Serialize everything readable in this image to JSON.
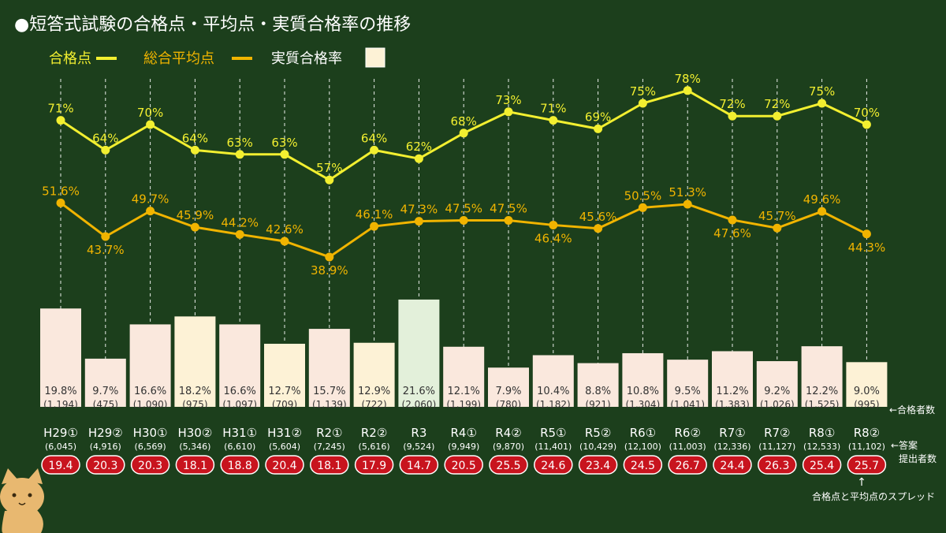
{
  "title": "●短答式試験の合格点・平均点・実質合格率の推移",
  "legend": {
    "pass_score": "合格点",
    "avg_score": "総合平均点",
    "rate": "実質合格率"
  },
  "colors": {
    "background": "#1c3f1c",
    "pass_line": "#f2ef30",
    "avg_line": "#f0b400",
    "bar_pink": "#fae8dd",
    "bar_cream": "#fdf2d6",
    "bar_green": "#e3f0da",
    "spread_fill": "#c8141e",
    "legend_text_pass": "#f2ef30",
    "legend_text_avg": "#f0b400"
  },
  "annotations": {
    "passers": "←合格者数",
    "submitters_1": "←答案",
    "submitters_2": "提出者数",
    "spread_arrow": "↑",
    "spread": "合格点と平均点のスプレッド"
  },
  "chart_data": {
    "type": "bar",
    "categories": [
      "H29①",
      "H29②",
      "H30①",
      "H30②",
      "H31①",
      "H31②",
      "R2①",
      "R2②",
      "R3",
      "R4①",
      "R4②",
      "R5①",
      "R5②",
      "R6①",
      "R6②",
      "R7①",
      "R7②",
      "R8①",
      "R8②"
    ],
    "series": [
      {
        "name": "合格点",
        "type": "line",
        "unit": "%",
        "values": [
          71,
          64,
          70,
          64,
          63,
          63,
          57,
          64,
          62,
          68,
          73,
          71,
          69,
          75,
          78,
          72,
          72,
          75,
          70
        ]
      },
      {
        "name": "総合平均点",
        "type": "line",
        "unit": "%",
        "values": [
          51.6,
          43.7,
          49.7,
          45.9,
          44.2,
          42.6,
          38.9,
          46.1,
          47.3,
          47.5,
          47.5,
          46.4,
          45.6,
          50.5,
          51.3,
          47.6,
          45.7,
          49.6,
          44.3
        ]
      },
      {
        "name": "実質合格率",
        "type": "bar",
        "unit": "%",
        "values": [
          19.8,
          9.7,
          16.6,
          18.2,
          16.6,
          12.7,
          15.7,
          12.9,
          21.6,
          12.1,
          7.9,
          10.4,
          8.8,
          10.8,
          9.5,
          11.2,
          9.2,
          12.2,
          9.0
        ]
      }
    ],
    "pass_label_text": [
      "71%",
      "64%",
      "70%",
      "64%",
      "63%",
      "63%",
      "57%",
      "64%",
      "62%",
      "68%",
      "73%",
      "71%",
      "69%",
      "75%",
      "78%",
      "72%",
      "72%",
      "75%",
      "70%"
    ],
    "avg_label_text": [
      "51.6%",
      "43.7%",
      "49.7%",
      "45.9%",
      "44.2%",
      "42.6%",
      "38.9%",
      "46.1%",
      "47.3%",
      "47.5%",
      "47.5%",
      "46.4%",
      "45.6%",
      "50.5%",
      "51.3%",
      "47.6%",
      "45.7%",
      "49.6%",
      "44.3%"
    ],
    "rate_label_text": [
      "19.8%",
      "9.7%",
      "16.6%",
      "18.2%",
      "16.6%",
      "12.7%",
      "15.7%",
      "12.9%",
      "21.6%",
      "12.1%",
      "7.9%",
      "10.4%",
      "8.8%",
      "10.8%",
      "9.5%",
      "11.2%",
      "9.2%",
      "12.2%",
      "9.0%"
    ],
    "passers": [
      "(1,194)",
      "(475)",
      "(1,090)",
      "(975)",
      "(1,097)",
      "(709)",
      "(1,139)",
      "(722)",
      "(2,060)",
      "(1,199)",
      "(780)",
      "(1,182)",
      "(921)",
      "(1,304)",
      "(1,041)",
      "(1,383)",
      "(1,026)",
      "(1,525)",
      "(995)"
    ],
    "submitters": [
      "(6,045)",
      "(4,916)",
      "(6,569)",
      "(5,346)",
      "(6,610)",
      "(5,604)",
      "(7,245)",
      "(5,616)",
      "(9,524)",
      "(9,949)",
      "(9,870)",
      "(11,401)",
      "(10,429)",
      "(12,100)",
      "(11,003)",
      "(12,336)",
      "(11,127)",
      "(12,533)",
      "(11,102)"
    ],
    "spread": [
      "19.4",
      "20.3",
      "20.3",
      "18.1",
      "18.8",
      "20.4",
      "18.1",
      "17.9",
      "14.7",
      "20.5",
      "25.5",
      "24.6",
      "23.4",
      "24.5",
      "26.7",
      "24.4",
      "26.3",
      "25.4",
      "25.7"
    ],
    "bar_colors": [
      "pink",
      "pink",
      "pink",
      "cream",
      "pink",
      "cream",
      "pink",
      "cream",
      "green",
      "pink",
      "pink",
      "pink",
      "pink",
      "pink",
      "pink",
      "pink",
      "pink",
      "pink",
      "cream"
    ],
    "pass_label_pos": [
      "above",
      "above",
      "above",
      "above",
      "above",
      "above",
      "above",
      "above",
      "above",
      "above",
      "above",
      "above",
      "above",
      "above",
      "above",
      "above",
      "above",
      "above",
      "above"
    ],
    "avg_label_pos": [
      "above",
      "below",
      "above",
      "above",
      "above",
      "above",
      "below",
      "above",
      "above",
      "above",
      "above",
      "below",
      "above",
      "above",
      "above",
      "below",
      "above",
      "above",
      "below"
    ],
    "legend_position": "top-left",
    "grid": false
  }
}
